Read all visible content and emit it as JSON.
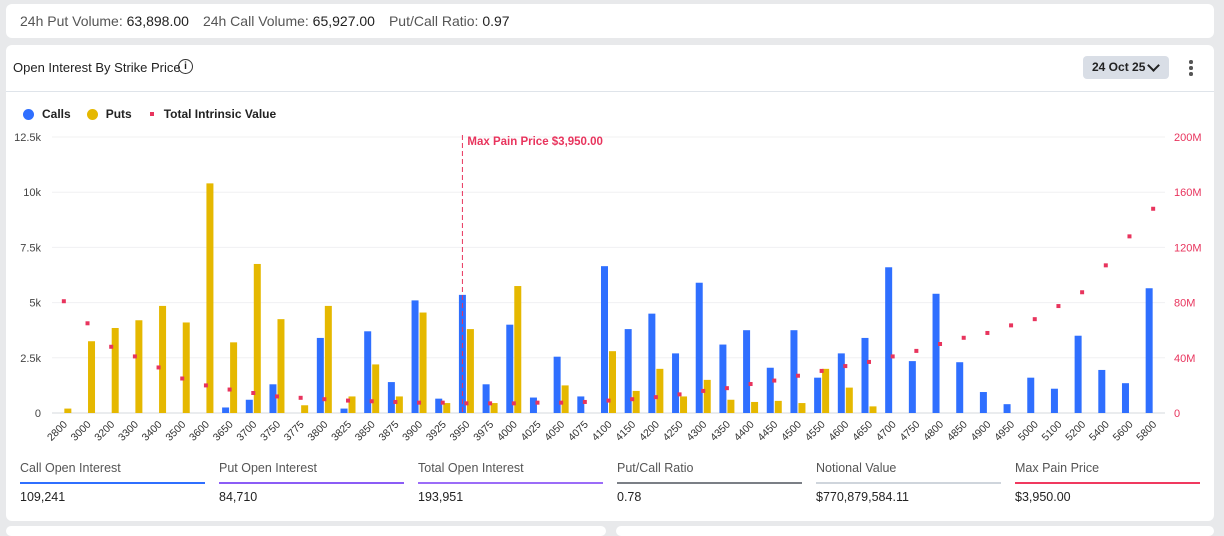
{
  "summary": {
    "put_volume_label": "24h Put Volume:",
    "put_volume": "63,898.00",
    "call_volume_label": "24h Call Volume:",
    "call_volume": "65,927.00",
    "ratio_label": "Put/Call Ratio:",
    "ratio": "0.97"
  },
  "panel": {
    "title": "Open Interest By Strike Price",
    "info_icon": "i",
    "date": "24 Oct 25",
    "legend": {
      "calls": "Calls",
      "puts": "Puts",
      "intrinsic": "Total Intrinsic Value"
    }
  },
  "colors": {
    "calls": "#2f6fff",
    "puts": "#e5b800",
    "intrinsic": "#e8345d",
    "grid": "#f0f0f2"
  },
  "chart_data": {
    "type": "bar",
    "title": "Open Interest By Strike Price",
    "categories": [
      "2800",
      "3000",
      "3200",
      "3300",
      "3400",
      "3500",
      "3600",
      "3650",
      "3700",
      "3750",
      "3775",
      "3800",
      "3825",
      "3850",
      "3875",
      "3900",
      "3925",
      "3950",
      "3975",
      "4000",
      "4025",
      "4050",
      "4075",
      "4100",
      "4150",
      "4200",
      "4250",
      "4300",
      "4350",
      "4400",
      "4450",
      "4500",
      "4550",
      "4600",
      "4650",
      "4700",
      "4750",
      "4800",
      "4850",
      "4900",
      "4950",
      "5000",
      "5100",
      "5200",
      "5400",
      "5600",
      "5800"
    ],
    "series": [
      {
        "name": "Calls",
        "axis": "left",
        "values": [
          0,
          0,
          0,
          0,
          0,
          0,
          0,
          250,
          600,
          1300,
          0,
          3400,
          200,
          3700,
          1400,
          5100,
          650,
          5350,
          1300,
          4000,
          700,
          2550,
          750,
          6650,
          3800,
          4500,
          2700,
          5900,
          3100,
          3750,
          2050,
          3750,
          1600,
          2700,
          3400,
          6600,
          2350,
          5400,
          2300,
          950,
          400,
          1600,
          1100,
          3500,
          1950,
          1350,
          5650
        ]
      },
      {
        "name": "Puts",
        "axis": "left",
        "values": [
          200,
          3250,
          3850,
          4200,
          4850,
          4100,
          10400,
          3200,
          6750,
          4250,
          350,
          4850,
          750,
          2200,
          750,
          4550,
          450,
          3800,
          450,
          5750,
          0,
          1250,
          0,
          2800,
          1000,
          2000,
          750,
          1500,
          600,
          500,
          550,
          450,
          2000,
          1150,
          300,
          0,
          0,
          0,
          0,
          0,
          0,
          0,
          0,
          0,
          0,
          0,
          0
        ]
      },
      {
        "name": "Total Intrinsic Value",
        "axis": "right",
        "type": "scatter",
        "values": [
          81000000,
          65000000,
          48000000,
          41000000,
          33000000,
          25000000,
          20000000,
          17000000,
          14500000,
          12000000,
          11000000,
          10000000,
          9000000,
          8500000,
          8000000,
          7500000,
          7500000,
          7000000,
          7000000,
          7000000,
          7500000,
          7500000,
          8000000,
          9000000,
          10000000,
          11500000,
          13500000,
          16000000,
          18000000,
          21000000,
          23500000,
          27000000,
          30500000,
          34000000,
          37000000,
          41000000,
          45000000,
          50000000,
          54500000,
          58000000,
          63500000,
          68000000,
          77500000,
          87500000,
          107000000,
          128000000,
          148000000
        ]
      }
    ],
    "y_left": {
      "range": [
        0,
        12500
      ],
      "ticks": [
        0,
        2500,
        5000,
        7500,
        10000,
        12500
      ],
      "tick_labels": [
        "0",
        "2.5k",
        "5k",
        "7.5k",
        "10k",
        "12.5k"
      ]
    },
    "y_right": {
      "range": [
        0,
        200000000
      ],
      "ticks": [
        0,
        40000000,
        80000000,
        120000000,
        160000000,
        200000000
      ],
      "tick_labels": [
        "0",
        "40M",
        "80M",
        "120M",
        "160M",
        "200M"
      ]
    },
    "annotation": {
      "category": "3950",
      "label": "Max Pain Price $3,950.00"
    },
    "grid": true,
    "legend_position": "top-left"
  },
  "stats": [
    {
      "label": "Call Open Interest",
      "value": "109,241",
      "color": "#2f6fff"
    },
    {
      "label": "Put Open Interest",
      "value": "84,710",
      "color": "#8b5cf6"
    },
    {
      "label": "Total Open Interest",
      "value": "193,951",
      "color": "#9b6cf8"
    },
    {
      "label": "Put/Call Ratio",
      "value": "0.78",
      "color": "#7b7f86"
    },
    {
      "label": "Notional Value",
      "value": "$770,879,584.11",
      "color": "#cfd5dc"
    },
    {
      "label": "Max Pain Price",
      "value": "$3,950.00",
      "color": "#f0395f"
    }
  ]
}
